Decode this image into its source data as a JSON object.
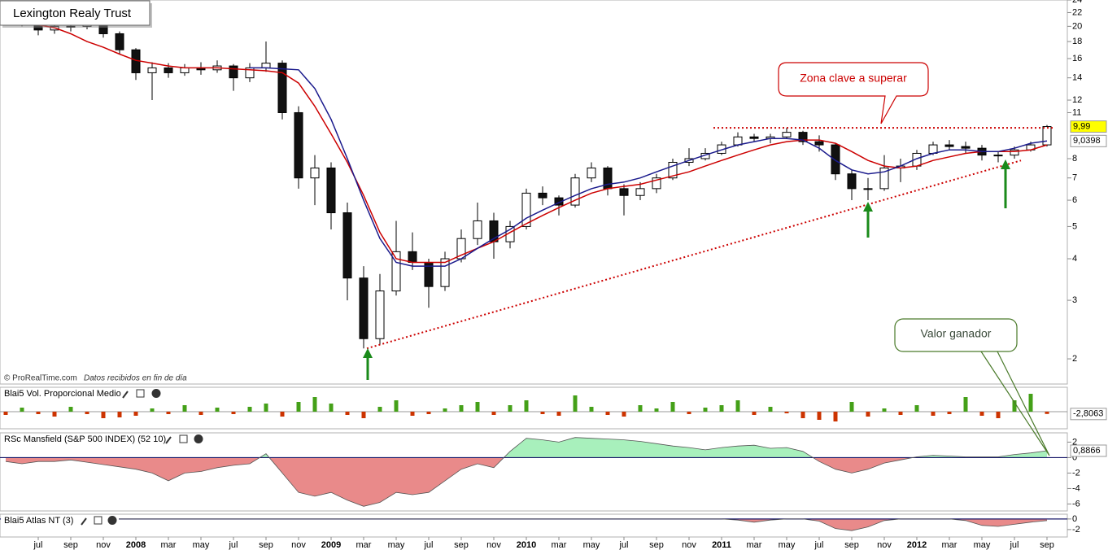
{
  "chart_data": [
    {
      "type": "candlestick",
      "title": "Lexington Realy Trust",
      "source": "© ProRealTime.com",
      "source_note": "Datos recibidos en fin de día",
      "x": [
        4,
        5,
        6,
        7,
        8,
        9,
        10,
        11,
        12,
        13,
        14,
        15,
        16,
        17,
        18,
        19,
        20,
        21,
        22,
        23,
        24,
        25,
        26,
        27,
        28,
        29,
        30,
        31,
        32,
        33,
        34,
        35,
        36,
        37,
        38,
        39,
        40,
        41,
        42,
        43,
        44,
        45,
        46,
        47,
        48,
        49,
        50,
        51,
        52,
        53,
        54,
        55,
        56,
        57,
        58,
        59,
        60,
        61,
        62,
        63,
        64,
        65,
        66,
        67,
        68
      ],
      "open": [
        21.5,
        21,
        20.5,
        19.5,
        20,
        20,
        20.5,
        19,
        17,
        14.5,
        15,
        14.5,
        15,
        14.8,
        15.2,
        14,
        15,
        15.5,
        11,
        7,
        7.5,
        5.5,
        3.5,
        2.3,
        3.2,
        4.2,
        3.9,
        3.3,
        4.0,
        4.6,
        5.2,
        4.5,
        5.0,
        6.3,
        6.1,
        5.8,
        7.0,
        7.5,
        6.5,
        6.2,
        6.5,
        7.0,
        7.8,
        8.0,
        8.3,
        8.8,
        9.3,
        9.2,
        9.3,
        9.6,
        9.0,
        8.8,
        7.2,
        6.5,
        6.5,
        7.5,
        7.6,
        8.3,
        8.8,
        8.7,
        8.6,
        8.2,
        8.2,
        8.5,
        8.8
      ],
      "high": [
        22,
        21.5,
        21,
        20.8,
        21,
        21.2,
        20.8,
        19.3,
        17.2,
        15.6,
        15.5,
        15.4,
        15.6,
        15.8,
        15.4,
        15.5,
        18,
        15.8,
        11.5,
        8.2,
        7.8,
        5.9,
        3.8,
        3.6,
        5.2,
        4.8,
        4.0,
        4.2,
        4.9,
        5.9,
        5.5,
        5.2,
        6.5,
        6.6,
        6.2,
        7.2,
        7.8,
        7.6,
        6.7,
        6.8,
        7.2,
        8.0,
        8.6,
        8.6,
        9.0,
        9.6,
        9.5,
        9.5,
        9.9,
        9.7,
        9.4,
        8.9,
        7.4,
        7.0,
        8.2,
        8.0,
        8.5,
        9.0,
        9.1,
        9.0,
        8.8,
        8.4,
        8.7,
        9.0,
        10.1
      ],
      "low": [
        20.5,
        20,
        18.8,
        19,
        19.3,
        19.6,
        18.5,
        16.5,
        13.8,
        12,
        14,
        14.2,
        14.3,
        14.5,
        12.8,
        13.6,
        14.6,
        10.5,
        6.5,
        5.8,
        4.9,
        3.0,
        2.15,
        2.2,
        3.1,
        3.7,
        2.85,
        3.2,
        3.9,
        4.4,
        4.0,
        4.3,
        4.9,
        5.8,
        5.4,
        5.7,
        6.8,
        6.2,
        5.4,
        6.0,
        6.3,
        6.9,
        7.6,
        7.9,
        8.2,
        8.7,
        9.0,
        8.9,
        9.2,
        8.8,
        8.4,
        6.9,
        6.0,
        6.0,
        6.4,
        6.8,
        7.4,
        8.2,
        8.5,
        8.3,
        7.9,
        7.8,
        8.0,
        8.4,
        8.7
      ],
      "close": [
        21,
        20.5,
        19.5,
        20,
        20,
        20.5,
        19,
        17,
        14.5,
        15,
        14.5,
        15,
        14.8,
        15.2,
        14,
        15,
        15.5,
        11,
        7,
        7.5,
        5.5,
        3.5,
        2.3,
        3.2,
        4.2,
        3.9,
        3.3,
        4.0,
        4.6,
        5.2,
        4.5,
        5.0,
        6.3,
        6.1,
        5.8,
        7.0,
        7.5,
        6.5,
        6.2,
        6.5,
        7.0,
        7.8,
        8.0,
        8.3,
        8.8,
        9.3,
        9.2,
        9.3,
        9.6,
        9.0,
        8.8,
        7.2,
        6.5,
        6.5,
        7.5,
        7.6,
        8.3,
        8.8,
        8.7,
        8.6,
        8.2,
        8.2,
        8.5,
        8.8,
        9.99
      ],
      "ma_red": {
        "color": "#cc0000",
        "values": [
          21,
          20.6,
          20.2,
          19.8,
          19,
          18,
          17.3,
          16.5,
          15.8,
          15.5,
          15.2,
          15,
          15,
          15,
          14.9,
          14.8,
          14.7,
          14.5,
          13.5,
          11.5,
          9.5,
          7.8,
          6.2,
          4.8,
          4.0,
          3.9,
          3.9,
          3.9,
          4.1,
          4.3,
          4.5,
          4.8,
          5.1,
          5.4,
          5.7,
          6.0,
          6.3,
          6.5,
          6.6,
          6.7,
          6.9,
          7.1,
          7.3,
          7.6,
          7.9,
          8.2,
          8.5,
          8.8,
          9.0,
          9.1,
          9.1,
          8.9,
          8.4,
          7.9,
          7.6,
          7.5,
          7.6,
          7.9,
          8.1,
          8.3,
          8.4,
          8.4,
          8.4,
          8.5,
          8.8
        ]
      },
      "ma_blue": {
        "color": "#1a1a8c",
        "values": [
          null,
          null,
          null,
          null,
          null,
          null,
          null,
          null,
          null,
          null,
          null,
          null,
          null,
          null,
          null,
          15,
          15,
          14.9,
          14.8,
          13,
          10.5,
          8.0,
          6.0,
          4.6,
          3.9,
          3.8,
          3.8,
          3.8,
          4.0,
          4.3,
          4.6,
          4.9,
          5.3,
          5.6,
          5.9,
          6.2,
          6.5,
          6.7,
          6.8,
          7.0,
          7.3,
          7.6,
          7.9,
          8.2,
          8.5,
          8.8,
          9.0,
          9.2,
          9.2,
          9.1,
          8.6,
          7.9,
          7.4,
          7.2,
          7.3,
          7.6,
          8.0,
          8.3,
          8.5,
          8.5,
          8.4,
          8.4,
          8.6,
          8.9,
          9.0398
        ]
      },
      "xlim": [
        3.65,
        69.25
      ],
      "xticks": [
        {
          "value": 6,
          "label": "jul"
        },
        {
          "value": 8,
          "label": "sep"
        },
        {
          "value": 10,
          "label": "nov"
        },
        {
          "value": 12,
          "label": "2008"
        },
        {
          "value": 14,
          "label": "mar"
        },
        {
          "value": 16,
          "label": "may"
        },
        {
          "value": 18,
          "label": "jul"
        },
        {
          "value": 20,
          "label": "sep"
        },
        {
          "value": 22,
          "label": "nov"
        },
        {
          "value": 24,
          "label": "2009"
        },
        {
          "value": 26,
          "label": "mar"
        },
        {
          "value": 28,
          "label": "may"
        },
        {
          "value": 30,
          "label": "jul"
        },
        {
          "value": 32,
          "label": "sep"
        },
        {
          "value": 34,
          "label": "nov"
        },
        {
          "value": 36,
          "label": "2010"
        },
        {
          "value": 38,
          "label": "mar"
        },
        {
          "value": 40,
          "label": "may"
        },
        {
          "value": 42,
          "label": "jul"
        },
        {
          "value": 44,
          "label": "sep"
        },
        {
          "value": 46,
          "label": "nov"
        },
        {
          "value": 48,
          "label": "2011"
        },
        {
          "value": 50,
          "label": "mar"
        },
        {
          "value": 52,
          "label": "may"
        },
        {
          "value": 54,
          "label": "jul"
        },
        {
          "value": 56,
          "label": "sep"
        },
        {
          "value": 58,
          "label": "nov"
        },
        {
          "value": 60,
          "label": "2012"
        },
        {
          "value": 62,
          "label": "mar"
        },
        {
          "value": 64,
          "label": "may"
        },
        {
          "value": 66,
          "label": "jul"
        },
        {
          "value": 68,
          "label": "sep"
        }
      ],
      "ylim": [
        1.68,
        24
      ],
      "log_scale": true,
      "yticks": [
        24,
        22,
        20,
        18,
        16,
        14,
        12,
        11,
        8,
        7,
        6,
        5,
        4,
        3,
        2
      ],
      "price_tags": [
        {
          "value": 9.99,
          "label": "9,99",
          "color": "#ffff00"
        },
        {
          "value": 9.0398,
          "label": "9,0398",
          "color": "#ffffff"
        }
      ],
      "resistance": {
        "value": 9.9,
        "x": [
          47.5,
          68.4
        ],
        "color": "#cc0000"
      },
      "trendline": {
        "x": [
          26.2,
          66.4
        ],
        "y": [
          2.15,
          7.9
        ],
        "color": "#cc0000"
      },
      "annotations": [
        {
          "text": "Zona clave a superar"
        },
        {
          "text": "Valor ganador"
        }
      ]
    },
    {
      "type": "bar",
      "title": "Blai5 Vol. Proporcional Medio",
      "up_color": "#44a018",
      "down_color": "#cc3300",
      "values": [
        -4,
        5,
        -3,
        -6,
        6,
        -3,
        -8,
        -7,
        -5,
        4,
        -3,
        8,
        -4,
        5,
        -3,
        6,
        10,
        -6,
        12,
        18,
        10,
        -4,
        -8,
        6,
        14,
        -5,
        -3,
        4,
        8,
        12,
        -4,
        8,
        14,
        -3,
        -5,
        20,
        6,
        -4,
        -6,
        8,
        4,
        12,
        -3,
        5,
        8,
        14,
        -4,
        6,
        -2,
        -8,
        -10,
        -12,
        12,
        -6,
        4,
        -4,
        8,
        -5,
        -3,
        18,
        -5,
        -8,
        14,
        22,
        -2.8063
      ],
      "ylim": [
        -21,
        30
      ],
      "value_tag": {
        "value": -2.8063,
        "label": "-2,8063"
      }
    },
    {
      "type": "area",
      "title": "RSc Mansfield (S&P 500 INDEX) (52 10)",
      "up_color": "#a8f0bc",
      "down_color": "#e98a8a",
      "values": [
        -0.5,
        -0.8,
        -0.5,
        -0.5,
        -0.3,
        -0.6,
        -0.9,
        -1.2,
        -1.5,
        -2,
        -3,
        -2,
        -1.8,
        -1.3,
        -1,
        -0.8,
        0.5,
        -2,
        -4.5,
        -5,
        -4.5,
        -5.5,
        -6.3,
        -5.8,
        -4.5,
        -4.8,
        -4.5,
        -3,
        -1.5,
        -0.8,
        -1.3,
        0.8,
        2.5,
        2.3,
        2.0,
        2.6,
        2.5,
        2.4,
        2.3,
        2.1,
        1.8,
        1.5,
        1.3,
        1.0,
        1.3,
        1.5,
        1.6,
        1.2,
        1.3,
        0.8,
        -0.5,
        -1.5,
        -2,
        -1.5,
        -0.7,
        -0.3,
        0.1,
        0.3,
        0.2,
        0.1,
        0.1,
        0.1,
        0.4,
        0.6,
        0.8866
      ],
      "ylim": [
        -6.9,
        3.2
      ],
      "yticks": [
        2,
        0,
        -2,
        -4,
        -6
      ],
      "value_tag": {
        "value": 0.8866,
        "label": "0,8866"
      }
    },
    {
      "type": "area",
      "title": "Blai5 Atlas NT (3)",
      "up_color": "#a8f0bc",
      "down_color": "#e98a8a",
      "values": [
        0,
        0,
        0,
        0,
        0,
        0,
        0,
        0,
        0,
        0,
        0,
        0,
        0,
        0,
        0,
        0,
        0,
        0,
        0,
        0,
        0,
        0,
        0,
        0,
        0,
        0,
        0,
        0,
        0,
        0,
        0,
        0,
        0,
        0,
        0,
        0,
        0,
        0,
        0,
        0,
        0,
        0,
        0,
        0,
        0,
        -0.2,
        -0.6,
        -0.2,
        0,
        0,
        -0.4,
        -1.8,
        -2.2,
        -1.5,
        -0.3,
        0,
        0,
        0,
        0,
        -0.3,
        -1.2,
        -1.4,
        -1.0,
        -0.6,
        -0.3
      ],
      "ylim": [
        -3.4,
        0.9
      ],
      "yticks": [
        0,
        -2
      ]
    }
  ]
}
